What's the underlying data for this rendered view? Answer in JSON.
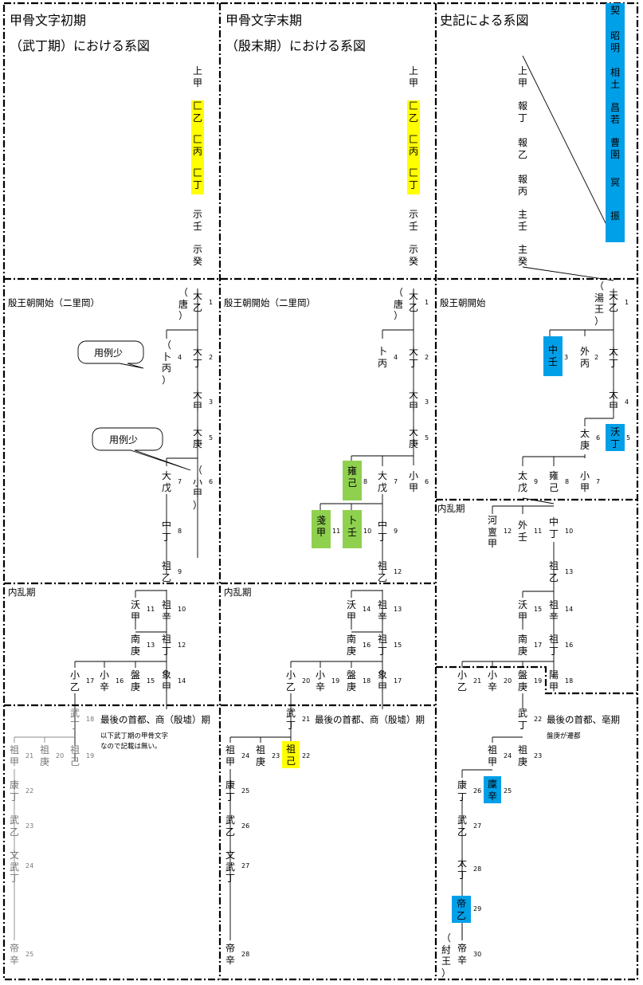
{
  "headers": {
    "c1_title": "甲骨文字初期",
    "c1_sub": "（武丁期）における系図",
    "c2_title": "甲骨文字末期",
    "c2_sub": "（殷末期）における系図",
    "c3_title": "史記による系図"
  },
  "section_labels": {
    "c1_start": "殷王朝開始（二里岡）",
    "c2_start": "殷王朝開始（二里岡）",
    "c3_start": "殷王朝開始",
    "c1_disorder": "内乱期",
    "c2_disorder": "内乱期",
    "c3_disorder": "内乱期",
    "c1_last": "最後の首都、商（殷墟）期",
    "c2_last": "最後の首都、商（殷墟）期",
    "c3_last": "最後の首都、亳期",
    "c1_note1": "以下武丁期の甲骨文字",
    "c1_note2": "なので記載は無い。",
    "c3_note": "盤庚が遷都"
  },
  "callouts": {
    "a": "用例少",
    "b": "用例少"
  },
  "col1": {
    "pre": [
      "上甲",
      "匚乙",
      "匚丙",
      "匚丁",
      "示壬",
      "示癸"
    ],
    "k1": "大乙",
    "k1p": "（唐）",
    "n1": "1",
    "k2": "大丁",
    "n2": "2",
    "k2s": "（卜丙）",
    "n4": "4",
    "k3": "大甲",
    "n3": "3",
    "k5": "大庚",
    "n5": "5",
    "k6": "（小甲）",
    "n6": "6",
    "k7": "大戊",
    "n7": "7",
    "k8": "中丁",
    "n8": "8",
    "k9": "祖乙",
    "n9": "9",
    "k10": "祖辛",
    "n10": "10",
    "k11": "沃甲",
    "n11": "11",
    "k12": "祖丁",
    "n12": "12",
    "k13": "南庚",
    "n13": "13",
    "k14": "象甲",
    "n14": "14",
    "k15": "盤庚",
    "n15": "15",
    "k16": "小辛",
    "n16": "16",
    "k17": "小乙",
    "n17": "17",
    "k18": "武丁",
    "n18": "18",
    "k19": "祖己",
    "n19": "19",
    "k20": "祖庚",
    "n20": "20",
    "k21": "祖甲",
    "n21": "21",
    "k22": "康丁",
    "n22": "22",
    "k23": "武乙",
    "n23": "23",
    "k24": "文武丁",
    "n24": "24",
    "k25": "帝辛",
    "n25": "25"
  },
  "col2": {
    "pre": [
      "上甲",
      "匚乙",
      "匚丙",
      "匚丁",
      "示壬",
      "示癸"
    ],
    "k1": "大乙",
    "k1p": "（唐）",
    "n1": "1",
    "k2": "大丁",
    "n2": "2",
    "k2s": "卜丙",
    "n4": "4",
    "k3": "大甲",
    "n3": "3",
    "k5": "大庚",
    "n5": "5",
    "k6": "小甲",
    "n6": "6",
    "k7": "大戊",
    "n7": "7",
    "k8": "雍己",
    "n8": "8",
    "k9": "中丁",
    "n9": "9",
    "k10": "卜壬",
    "n10": "10",
    "k11": "戔甲",
    "n11": "11",
    "k12": "祖乙",
    "n12": "12",
    "k13": "祖辛",
    "n13": "13",
    "k14": "沃甲",
    "n14": "14",
    "k15": "祖丁",
    "n15": "15",
    "k16": "南庚",
    "n16": "16",
    "k17": "象甲",
    "n17": "17",
    "k18": "盤庚",
    "n18": "18",
    "k19": "小辛",
    "n19": "19",
    "k20": "小乙",
    "n20": "20",
    "k21": "武丁",
    "n21": "21",
    "k22": "祖己",
    "n22": "22",
    "k23": "祖庚",
    "n23": "23",
    "k24": "祖甲",
    "n24": "24",
    "k25": "康丁",
    "n25": "25",
    "k26": "武乙",
    "n26": "26",
    "k27": "文武丁",
    "n27": "27",
    "k28": "帝辛",
    "n28": "28"
  },
  "col3": {
    "pre": [
      "上甲",
      "報丁",
      "報乙",
      "報丙",
      "主壬",
      "主癸"
    ],
    "side": [
      "契",
      "昭明",
      "相土",
      "昌若",
      "曹圉",
      "冥",
      "振"
    ],
    "k1": "天乙",
    "k1p": "（湯王）",
    "n1": "1",
    "k2": "太丁",
    "k2s": "外丙",
    "n2": "2",
    "k3": "中壬",
    "n3": "3",
    "k4": "太甲",
    "n4": "4",
    "k5": "沃丁",
    "n5": "5",
    "k6": "太庚",
    "n6": "6",
    "k7": "小甲",
    "n7": "7",
    "k8": "雍己",
    "n8": "8",
    "k9": "太戊",
    "n9": "9",
    "k10": "中丁",
    "n10": "10",
    "k11": "外壬",
    "n11": "11",
    "k12": "河亶甲",
    "n12": "12",
    "k13": "祖乙",
    "n13": "13",
    "k14": "祖辛",
    "n14": "14",
    "k15": "沃甲",
    "n15": "15",
    "k16": "祖丁",
    "n16": "16",
    "k17": "南庚",
    "n17": "17",
    "k18": "陽甲",
    "n18": "18",
    "k19": "盤庚",
    "n19": "19",
    "k20": "小辛",
    "n20": "20",
    "k21": "小乙",
    "n21": "21",
    "k22": "武丁",
    "n22": "22",
    "k23": "祖庚",
    "n23": "23",
    "k24": "祖甲",
    "n24": "24",
    "k25": "廩辛",
    "n25": "25",
    "k26": "康丁",
    "n26": "26",
    "k27": "武乙",
    "n27": "27",
    "k28": "太丁",
    "n28": "28",
    "k29": "帝乙",
    "n29": "29",
    "k30": "帝辛",
    "n30": "30",
    "k30p": "（紂王）"
  },
  "colors": {
    "yellow": "#ffff00",
    "blue": "#00a0e9",
    "green": "#8fd14f",
    "gray": "#777777"
  }
}
